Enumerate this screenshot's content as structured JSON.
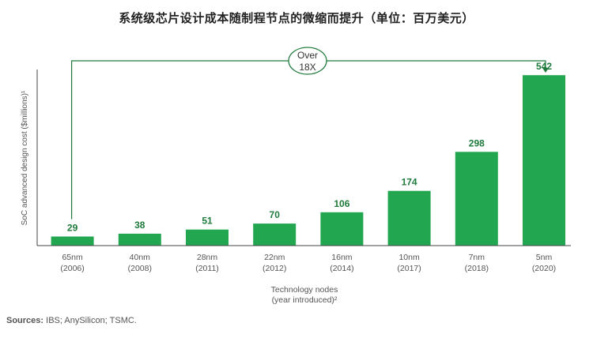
{
  "title": "系统级芯片设计成本随制程节点的微缩而提升（单位：百万美元）",
  "sources": {
    "label": "Sources:",
    "text": "IBS; AnySilicon; TSMC."
  },
  "annotation": {
    "line1": "Over",
    "line2": "18X"
  },
  "colors": {
    "bar": "#22a64f",
    "bar_label": "#1f7a3c",
    "axis": "#444444",
    "annotation": "#1f7a3c",
    "tick_text": "#555555"
  },
  "chart_data": {
    "type": "bar",
    "title": "系统级芯片设计成本随制程节点的微缩而提升（单位：百万美元）",
    "ylabel": "SoC advanced design cost ($millions)¹",
    "xlabel_line1": "Technology nodes",
    "xlabel_line2": "(year introduced)²",
    "categories": [
      {
        "node": "65nm",
        "year": "(2006)"
      },
      {
        "node": "40nm",
        "year": "(2008)"
      },
      {
        "node": "28nm",
        "year": "(2011)"
      },
      {
        "node": "22nm",
        "year": "(2012)"
      },
      {
        "node": "16nm",
        "year": "(2014)"
      },
      {
        "node": "10nm",
        "year": "(2017)"
      },
      {
        "node": "7nm",
        "year": "(2018)"
      },
      {
        "node": "5nm",
        "year": "(2020)"
      }
    ],
    "values": [
      29,
      38,
      51,
      70,
      106,
      174,
      298,
      542
    ],
    "ylim": [
      0,
      560
    ],
    "grid": false,
    "legend": "none"
  }
}
